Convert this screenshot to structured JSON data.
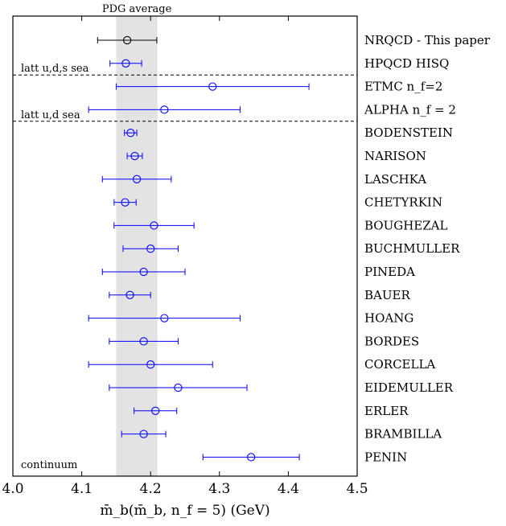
{
  "chart_data": {
    "type": "scatter",
    "title": "PDG average",
    "xlabel": "m̄_b(m̄_b, n_f = 5) (GeV)",
    "xlim": [
      4.0,
      4.5
    ],
    "x_ticks": [
      "4.0",
      "4.1",
      "4.2",
      "4.3",
      "4.4",
      "4.5"
    ],
    "band": {
      "label": "PDG average",
      "low": 4.15,
      "high": 4.21,
      "color": "#e3e3e3"
    },
    "colors": {
      "highlight": "#000000",
      "others": "#0000ff"
    },
    "points": [
      {
        "label": "NRQCD - This paper",
        "value": 4.166,
        "low": 4.123,
        "high": 4.209,
        "highlight": true
      },
      {
        "label": "HPQCD HISQ",
        "value": 4.164,
        "low": 4.141,
        "high": 4.187
      },
      {
        "label": "ETMC n_f=2",
        "value": 4.29,
        "low": 4.15,
        "high": 4.43
      },
      {
        "label": "ALPHA n_f = 2",
        "value": 4.22,
        "low": 4.11,
        "high": 4.33
      },
      {
        "label": "BODENSTEIN",
        "value": 4.171,
        "low": 4.162,
        "high": 4.18
      },
      {
        "label": "NARISON",
        "value": 4.177,
        "low": 4.166,
        "high": 4.188
      },
      {
        "label": "LASCHKA",
        "value": 4.18,
        "low": 4.13,
        "high": 4.23
      },
      {
        "label": "CHETYRKIN",
        "value": 4.163,
        "low": 4.147,
        "high": 4.179
      },
      {
        "label": "BOUGHEZAL",
        "value": 4.205,
        "low": 4.147,
        "high": 4.263
      },
      {
        "label": "BUCHMULLER",
        "value": 4.2,
        "low": 4.16,
        "high": 4.24
      },
      {
        "label": "PINEDA",
        "value": 4.19,
        "low": 4.13,
        "high": 4.25
      },
      {
        "label": "BAUER",
        "value": 4.17,
        "low": 4.14,
        "high": 4.2
      },
      {
        "label": "HOANG",
        "value": 4.22,
        "low": 4.11,
        "high": 4.33
      },
      {
        "label": "BORDES",
        "value": 4.19,
        "low": 4.14,
        "high": 4.24
      },
      {
        "label": "CORCELLA",
        "value": 4.2,
        "low": 4.11,
        "high": 4.29
      },
      {
        "label": "EIDEMULLER",
        "value": 4.24,
        "low": 4.14,
        "high": 4.34
      },
      {
        "label": "ERLER",
        "value": 4.207,
        "low": 4.176,
        "high": 4.238
      },
      {
        "label": "BRAMBILLA",
        "value": 4.19,
        "low": 4.158,
        "high": 4.222
      },
      {
        "label": "PENIN",
        "value": 4.346,
        "low": 4.276,
        "high": 4.416
      }
    ],
    "group_labels": [
      {
        "label": "latt u,d,s sea",
        "after_index": 1
      },
      {
        "label": "latt u,d sea",
        "after_index": 3
      },
      {
        "label": "continuum",
        "after_index": 18
      }
    ]
  }
}
